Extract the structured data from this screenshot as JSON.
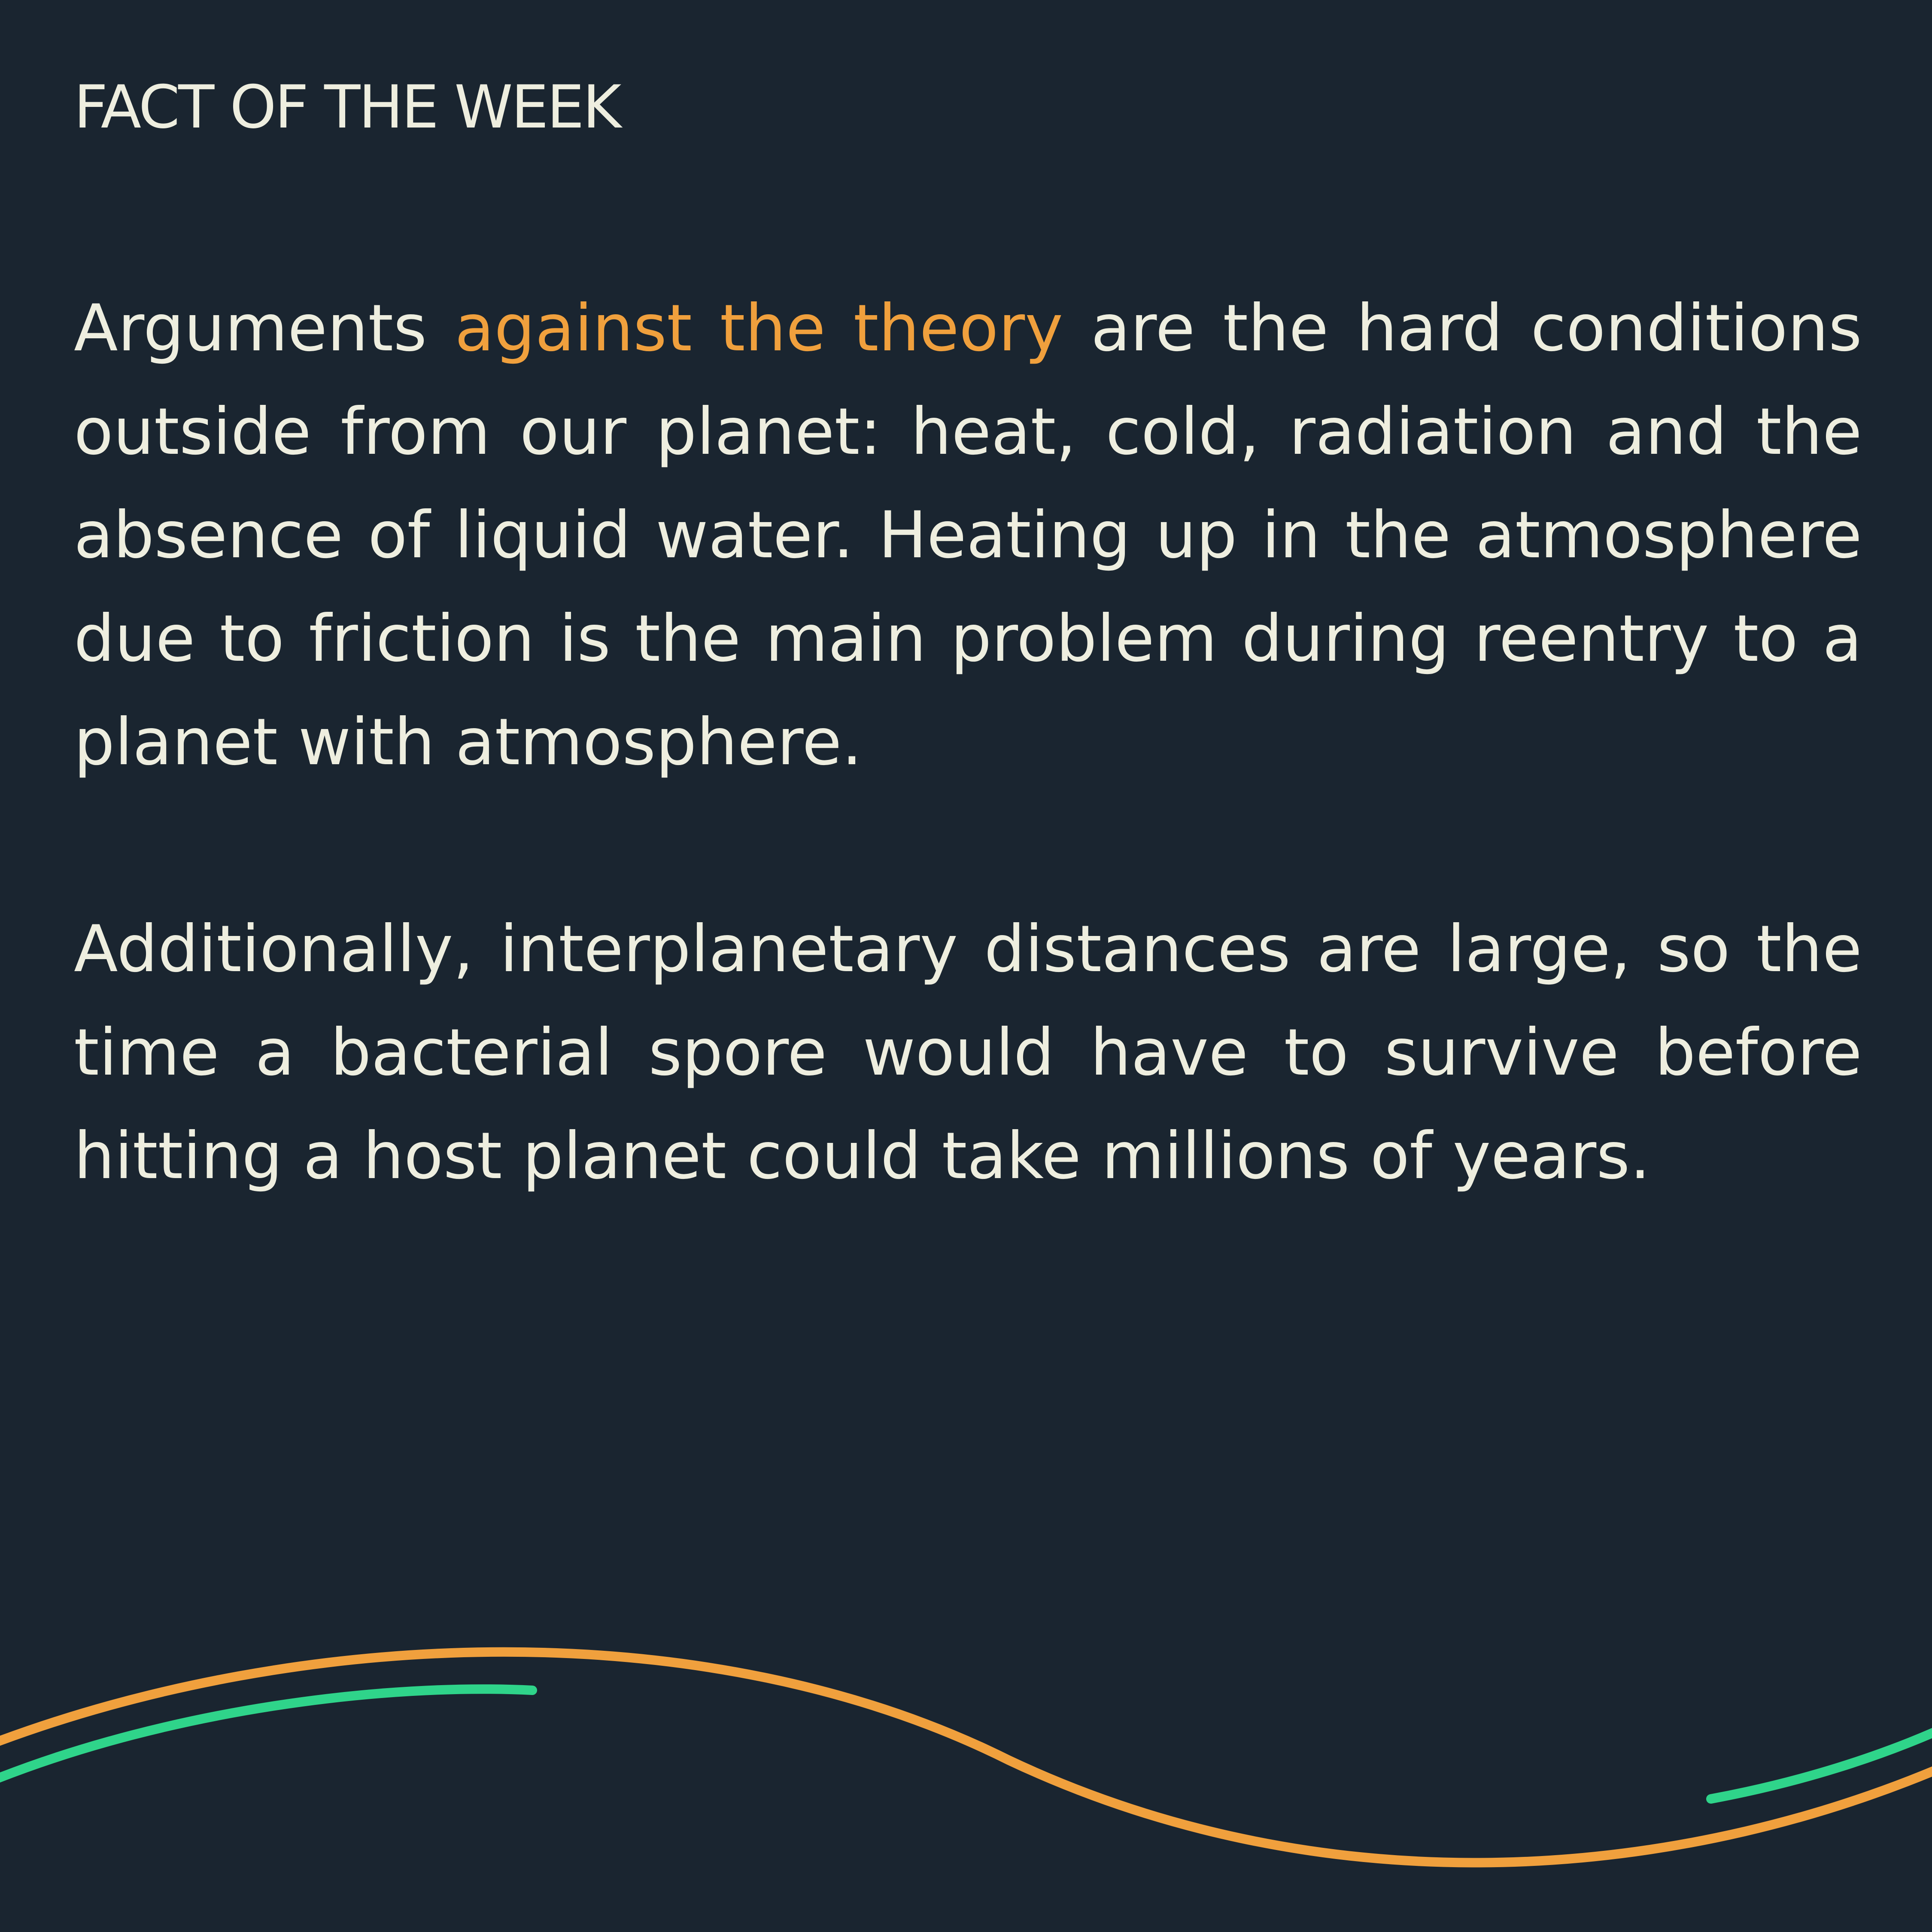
{
  "heading": "FACT OF THE WEEK",
  "paragraph1": {
    "before": "Arguments ",
    "highlight": "against the theory",
    "after": " are the hard conditions outside from our planet: heat, cold, radiation and the absence of liquid water. He­ating up in the atmosphere due to friction is the main problem during reentry to a planet with atmosphere."
  },
  "paragraph2": "Additionally, interplanetary distances are large, so the time a bacterial spore would have to survive before hitting a host planet could take millions of years.",
  "colors": {
    "background": "#1a2530",
    "text": "#eeeedf",
    "accent_orange": "#f0a03d",
    "accent_green": "#2fd48a"
  }
}
